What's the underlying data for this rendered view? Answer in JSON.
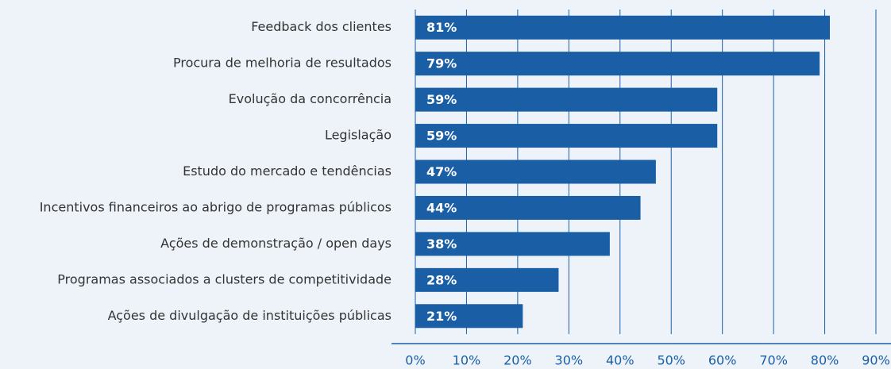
{
  "chart_data": {
    "type": "bar",
    "orientation": "horizontal",
    "categories": [
      "Feedback dos clientes",
      "Procura de melhoria de resultados",
      "Evolução da concorrência",
      "Legislação",
      "Estudo do mercado e tendências",
      "Incentivos financeiros ao abrigo de programas públicos",
      "Ações de demonstração / open days",
      "Programas associados a clusters de competitividade",
      "Ações de divulgação de instituições públicas"
    ],
    "values": [
      81,
      79,
      59,
      59,
      47,
      44,
      38,
      28,
      21
    ],
    "value_labels": [
      "81%",
      "79%",
      "59%",
      "59%",
      "47%",
      "44%",
      "38%",
      "28%",
      "21%"
    ],
    "color": "#1a5fa6",
    "xlim": [
      0,
      90
    ],
    "xticks": [
      {
        "value": 0,
        "label": "0%"
      },
      {
        "value": 10,
        "label": "10%"
      },
      {
        "value": 20,
        "label": "20%"
      },
      {
        "value": 30,
        "label": "30%"
      },
      {
        "value": 40,
        "label": "40%"
      },
      {
        "value": 50,
        "label": "50%"
      },
      {
        "value": 60,
        "label": "60%"
      },
      {
        "value": 70,
        "label": "70%"
      },
      {
        "value": 80,
        "label": "80%"
      },
      {
        "value": 90,
        "label": "90%"
      }
    ],
    "grid": true
  }
}
